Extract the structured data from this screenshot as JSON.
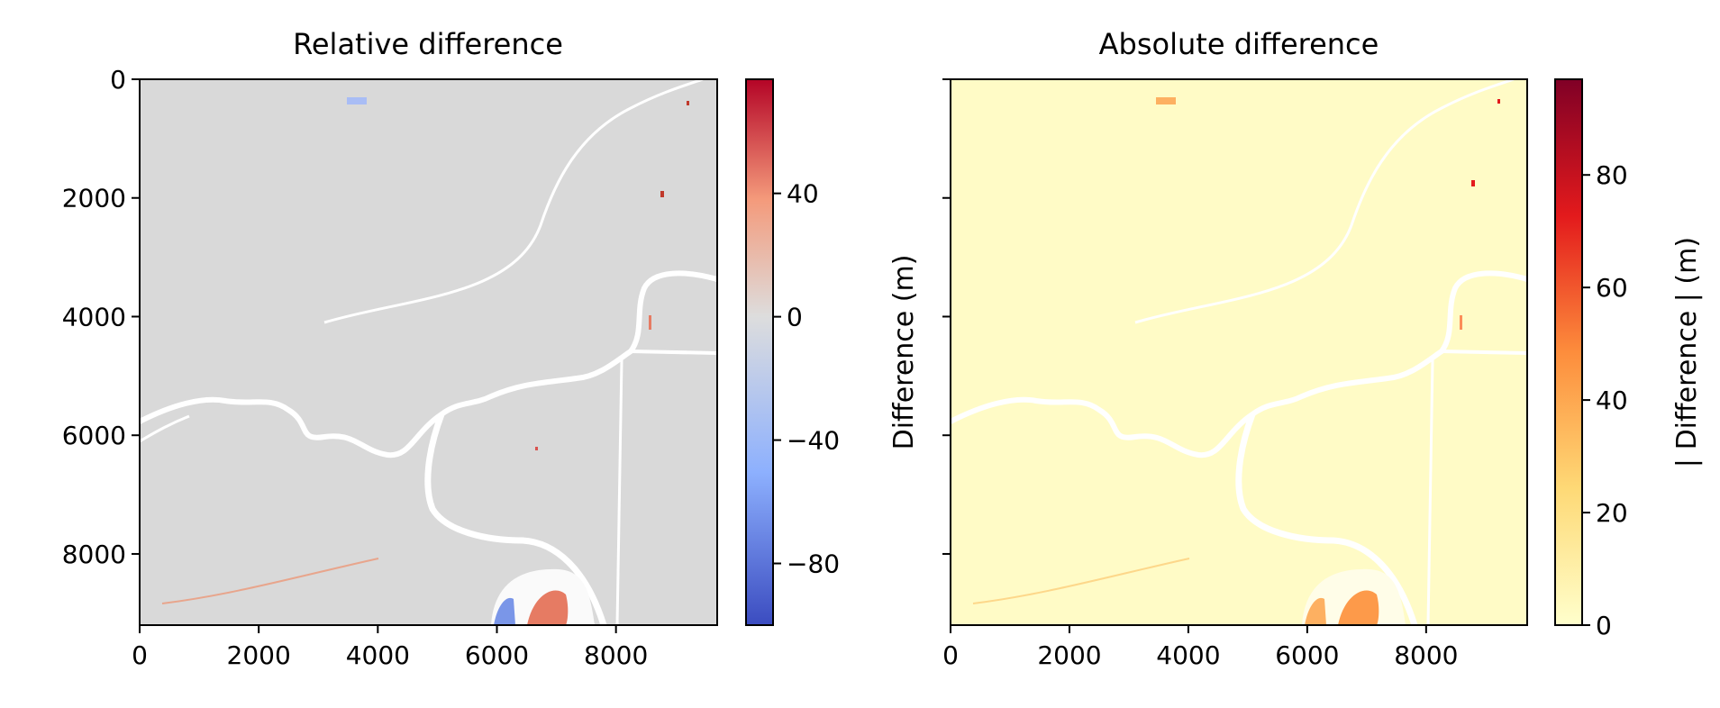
{
  "chart_data": [
    {
      "type": "heatmap",
      "title": "Relative difference",
      "xlabel": "",
      "ylabel": "",
      "xlim": [
        0,
        9700
      ],
      "ylim": [
        9200,
        0
      ],
      "xticks": [
        0,
        2000,
        4000,
        6000,
        8000
      ],
      "yticks": [
        0,
        2000,
        4000,
        6000,
        8000
      ],
      "colormap": "coolwarm",
      "colorbar": {
        "label": "Difference (m)",
        "range": [
          -100,
          77
        ],
        "ticks": [
          -80,
          -40,
          0,
          40
        ],
        "tick_labels": [
          "−80",
          "−40",
          "0",
          "40"
        ],
        "colors": [
          "#3b4cc0",
          "#8db0fe",
          "#dddddd",
          "#f49a7b",
          "#b40426"
        ]
      },
      "background_color": "#d9d9d9"
    },
    {
      "type": "heatmap",
      "title": "Absolute difference",
      "xlabel": "",
      "ylabel": "",
      "xlim": [
        0,
        9700
      ],
      "ylim": [
        9200,
        0
      ],
      "xticks": [
        0,
        2000,
        4000,
        6000,
        8000
      ],
      "yticks": [
        0,
        2000,
        4000,
        6000,
        8000
      ],
      "show_ytick_labels": false,
      "colormap": "YlOrRd",
      "colorbar": {
        "label": "| Difference | (m)",
        "range": [
          0,
          97
        ],
        "ticks": [
          0,
          20,
          40,
          60,
          80
        ],
        "tick_labels": [
          "0",
          "20",
          "40",
          "60",
          "80"
        ],
        "colors": [
          "#ffffcc",
          "#fed976",
          "#fd8d3c",
          "#e31a1c",
          "#800026"
        ]
      },
      "background_color": "#fffbc6"
    }
  ]
}
